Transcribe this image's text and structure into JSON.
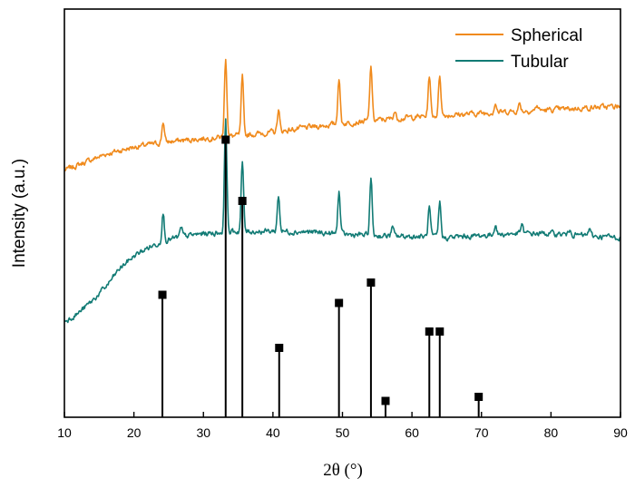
{
  "chart_data": {
    "type": "line",
    "title": "",
    "xlabel": "2θ (°)",
    "ylabel": "Intensity (a.u.)",
    "xlim": [
      10,
      90
    ],
    "ylim": [
      0,
      100
    ],
    "x_ticks": [
      10,
      20,
      30,
      40,
      50,
      60,
      70,
      80,
      90
    ],
    "grid": false,
    "legend_position": "top-right",
    "colors": {
      "Spherical": "#f08a1c",
      "Tubular": "#127b75",
      "reference": "#000000"
    },
    "series": [
      {
        "name": "Spherical",
        "baseline_x": [
          10,
          13,
          16,
          20,
          25,
          30,
          35,
          40,
          45,
          50,
          55,
          60,
          65,
          70,
          75,
          80,
          85,
          90
        ],
        "baseline_y": [
          60.5,
          62.5,
          64.5,
          66.2,
          67.5,
          68.3,
          69,
          69.8,
          71,
          72,
          72.8,
          73.5,
          74,
          74.5,
          75,
          75.3,
          75.8,
          76.2
        ],
        "peaks_x": [
          24.2,
          33.2,
          35.6,
          40.8,
          49.5,
          54.1,
          57.5,
          62.5,
          64.0,
          72.0,
          75.5,
          78.0
        ],
        "peaks_height": [
          5.2,
          19.5,
          14.0,
          5.3,
          11.4,
          13.5,
          1.8,
          10.0,
          10.0,
          2.4,
          1.8,
          1.2
        ]
      },
      {
        "name": "Tubular",
        "baseline_x": [
          10,
          12,
          14,
          16,
          18,
          20,
          22,
          24,
          27,
          30,
          35,
          40,
          45,
          50,
          55,
          60,
          65,
          70,
          75,
          80,
          85,
          90
        ],
        "baseline_y": [
          23.5,
          25.5,
          28.5,
          32,
          36.5,
          39.5,
          41.5,
          43,
          44.3,
          45,
          45.5,
          45.6,
          45.4,
          44.8,
          44.5,
          44.3,
          44.0,
          44.5,
          45,
          45,
          44.5,
          44
        ],
        "peaks_x": [
          24.2,
          26.8,
          33.2,
          35.6,
          40.8,
          49.5,
          54.1,
          57.2,
          62.5,
          64.0,
          72.0,
          75.8,
          82.8,
          85.5
        ],
        "peaks_height": [
          7.0,
          2.0,
          28.0,
          17.0,
          8.8,
          10.5,
          14.0,
          2.0,
          7.3,
          8.5,
          2.6,
          2.0,
          1.5,
          1.5
        ]
      }
    ],
    "reference_pattern": {
      "x": [
        24.1,
        33.2,
        35.6,
        40.9,
        49.5,
        54.1,
        56.2,
        62.5,
        64.0,
        69.6
      ],
      "intensity": [
        30,
        68,
        53,
        17,
        28,
        33,
        4,
        21,
        21,
        5
      ]
    }
  }
}
